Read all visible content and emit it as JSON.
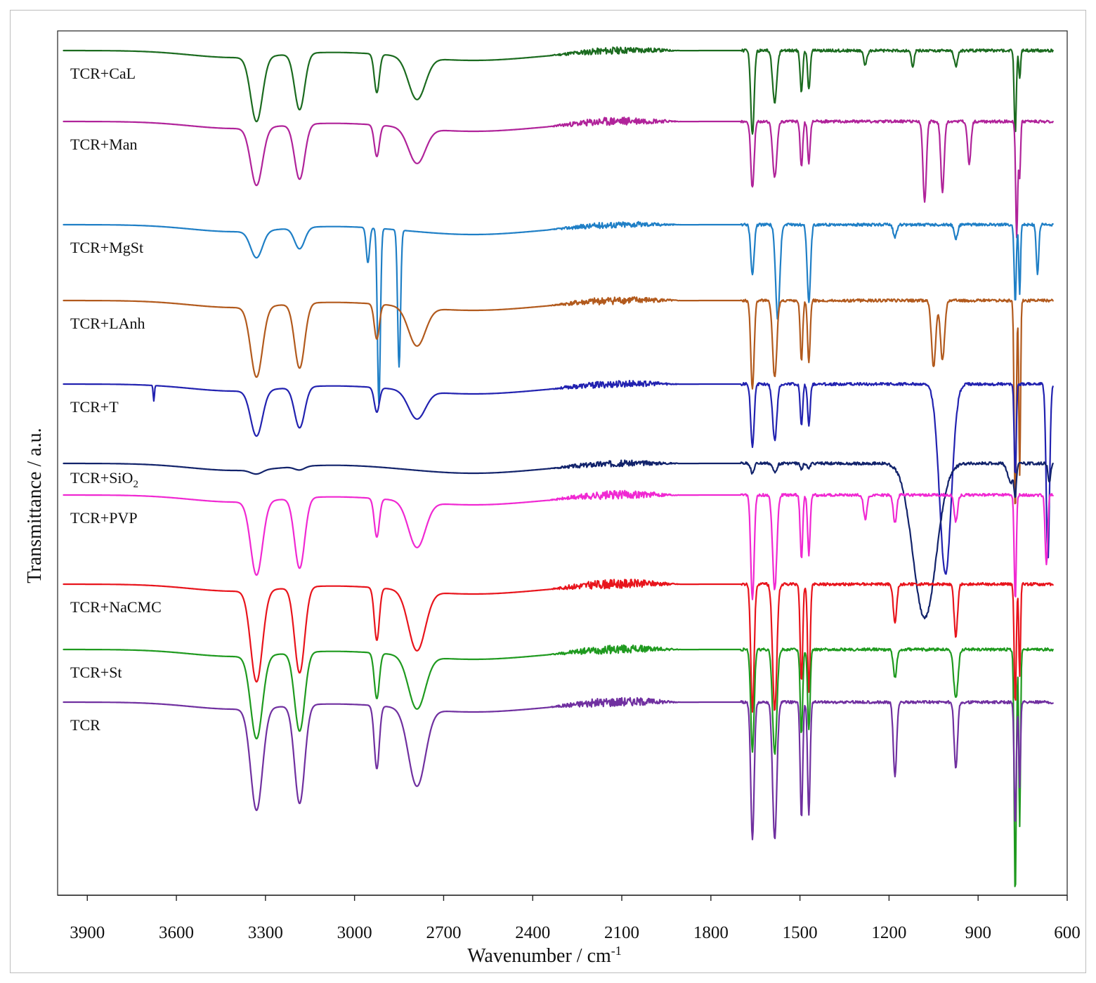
{
  "chart_data": {
    "type": "line",
    "title": "",
    "xlabel": "Wavenumber / cm",
    "xlabel_superscript": "-1",
    "ylabel": "Transmittance / a.u.",
    "xlim": [
      4000,
      600
    ],
    "x_reversed": true,
    "xticks": [
      3900,
      3600,
      3300,
      3000,
      2700,
      2400,
      2100,
      1800,
      1500,
      1200,
      900,
      600
    ],
    "grid": false,
    "legend": "inline-left",
    "series": [
      {
        "name": "TCR+CaL",
        "label": "TCR+CaL",
        "color": "#1b6b1f",
        "offset": 72,
        "bands": [
          [
            3330,
            28,
            92
          ],
          [
            3185,
            24,
            80
          ],
          [
            2925,
            12,
            55
          ],
          [
            2790,
            40,
            60
          ],
          [
            1660,
            8,
            120
          ],
          [
            1585,
            10,
            75
          ],
          [
            1495,
            6,
            60
          ],
          [
            1470,
            6,
            55
          ],
          [
            1280,
            8,
            20
          ],
          [
            1120,
            6,
            25
          ],
          [
            975,
            8,
            22
          ],
          [
            775,
            5,
            120
          ],
          [
            760,
            4,
            40
          ]
        ],
        "noise": [
          [
            2350,
            1900,
            10
          ]
        ],
        "seed": 11
      },
      {
        "name": "TCR+Man",
        "label": "TCR+Man",
        "color": "#b0239a",
        "offset": 173,
        "bands": [
          [
            3330,
            28,
            82
          ],
          [
            3185,
            24,
            78
          ],
          [
            2925,
            12,
            45
          ],
          [
            2790,
            40,
            50
          ],
          [
            1660,
            8,
            95
          ],
          [
            1585,
            10,
            80
          ],
          [
            1495,
            6,
            65
          ],
          [
            1470,
            6,
            60
          ],
          [
            1080,
            8,
            115
          ],
          [
            1020,
            8,
            100
          ],
          [
            930,
            8,
            60
          ],
          [
            770,
            5,
            165
          ],
          [
            760,
            4,
            80
          ]
        ],
        "noise": [
          [
            2350,
            1900,
            12
          ]
        ],
        "seed": 23
      },
      {
        "name": "TCR+MgSt",
        "label": "TCR+MgSt",
        "color": "#1f7fc6",
        "offset": 320,
        "bands": [
          [
            3330,
            28,
            38
          ],
          [
            3185,
            24,
            30
          ],
          [
            2955,
            8,
            50
          ],
          [
            2918,
            7,
            250
          ],
          [
            2850,
            7,
            195
          ],
          [
            1660,
            8,
            70
          ],
          [
            1575,
            10,
            135
          ],
          [
            1470,
            8,
            110
          ],
          [
            1180,
            8,
            18
          ],
          [
            975,
            8,
            20
          ],
          [
            775,
            5,
            110
          ],
          [
            760,
            4,
            100
          ],
          [
            700,
            6,
            70
          ]
        ],
        "noise": [
          [
            2350,
            1900,
            9
          ]
        ],
        "seed": 37
      },
      {
        "name": "TCR+LAnh",
        "label": "TCR+LAnh",
        "color": "#b25a1d",
        "offset": 428,
        "bands": [
          [
            3330,
            28,
            100
          ],
          [
            3185,
            24,
            92
          ],
          [
            2925,
            12,
            50
          ],
          [
            2790,
            40,
            55
          ],
          [
            1660,
            8,
            125
          ],
          [
            1585,
            10,
            110
          ],
          [
            1495,
            6,
            85
          ],
          [
            1470,
            6,
            90
          ],
          [
            1050,
            10,
            95
          ],
          [
            1020,
            10,
            85
          ],
          [
            775,
            5,
            300
          ],
          [
            760,
            4,
            250
          ]
        ],
        "noise": [
          [
            2350,
            1900,
            11
          ]
        ],
        "seed": 41
      },
      {
        "name": "TCR+T",
        "label": "TCR+T",
        "color": "#2222b0",
        "offset": 547,
        "bands": [
          [
            3676,
            3,
            22
          ],
          [
            3330,
            28,
            65
          ],
          [
            3185,
            24,
            58
          ],
          [
            2925,
            12,
            35
          ],
          [
            2790,
            40,
            40
          ],
          [
            1660,
            8,
            90
          ],
          [
            1585,
            10,
            80
          ],
          [
            1495,
            6,
            60
          ],
          [
            1470,
            6,
            60
          ],
          [
            1010,
            28,
            270
          ],
          [
            775,
            5,
            130
          ],
          [
            665,
            8,
            250
          ]
        ],
        "noise": [
          [
            2350,
            1900,
            10
          ]
        ],
        "seed": 53
      },
      {
        "name": "TCR+SiO2",
        "label": "TCR+SiO",
        "label_subscript": "2",
        "color": "#12236b",
        "offset": 660,
        "bands": [
          [
            3330,
            28,
            6
          ],
          [
            3185,
            24,
            5
          ],
          [
            1660,
            8,
            14
          ],
          [
            1585,
            10,
            12
          ],
          [
            1495,
            6,
            8
          ],
          [
            1470,
            6,
            8
          ],
          [
            1080,
            55,
            220
          ],
          [
            790,
            14,
            28
          ],
          [
            775,
            5,
            40
          ],
          [
            660,
            6,
            28
          ]
        ],
        "noise": [
          [
            2350,
            1900,
            9
          ]
        ],
        "seed": 67
      },
      {
        "name": "TCR+PVP",
        "label": "TCR+PVP",
        "color": "#f028d2",
        "offset": 705,
        "bands": [
          [
            3330,
            28,
            105
          ],
          [
            3185,
            24,
            100
          ],
          [
            2925,
            12,
            55
          ],
          [
            2790,
            40,
            65
          ],
          [
            1660,
            8,
            150
          ],
          [
            1585,
            10,
            135
          ],
          [
            1495,
            6,
            90
          ],
          [
            1470,
            6,
            85
          ],
          [
            1280,
            8,
            35
          ],
          [
            1180,
            8,
            40
          ],
          [
            975,
            8,
            38
          ],
          [
            775,
            5,
            150
          ],
          [
            670,
            6,
            100
          ]
        ],
        "noise": [
          [
            2350,
            1900,
            12
          ]
        ],
        "seed": 71
      },
      {
        "name": "TCR+NaCMC",
        "label": "TCR+NaCMC",
        "color": "#e8141c",
        "offset": 832,
        "bands": [
          [
            3330,
            28,
            130
          ],
          [
            3185,
            24,
            122
          ],
          [
            2925,
            12,
            75
          ],
          [
            2790,
            40,
            85
          ],
          [
            1660,
            8,
            180
          ],
          [
            1585,
            10,
            180
          ],
          [
            1495,
            6,
            140
          ],
          [
            1470,
            6,
            155
          ],
          [
            1180,
            8,
            55
          ],
          [
            975,
            8,
            75
          ],
          [
            775,
            5,
            170
          ],
          [
            760,
            4,
            130
          ]
        ],
        "noise": [
          [
            2350,
            1900,
            13
          ]
        ],
        "seed": 83
      },
      {
        "name": "TCR+St",
        "label": "TCR+St",
        "color": "#1f9a1f",
        "offset": 925,
        "bands": [
          [
            3330,
            28,
            118
          ],
          [
            3185,
            24,
            112
          ],
          [
            2925,
            12,
            65
          ],
          [
            2790,
            40,
            75
          ],
          [
            1660,
            8,
            145
          ],
          [
            1585,
            10,
            150
          ],
          [
            1495,
            6,
            120
          ],
          [
            1470,
            6,
            115
          ],
          [
            1180,
            8,
            40
          ],
          [
            975,
            10,
            70
          ],
          [
            775,
            5,
            350
          ],
          [
            760,
            4,
            250
          ]
        ],
        "noise": [
          [
            2350,
            1900,
            12
          ]
        ],
        "seed": 97
      },
      {
        "name": "TCR",
        "label": "TCR",
        "color": "#7030a0",
        "offset": 1000,
        "bands": [
          [
            3330,
            28,
            145
          ],
          [
            3185,
            24,
            140
          ],
          [
            2925,
            12,
            90
          ],
          [
            2790,
            40,
            110
          ],
          [
            1660,
            8,
            195
          ],
          [
            1585,
            10,
            195
          ],
          [
            1495,
            6,
            165
          ],
          [
            1470,
            6,
            160
          ],
          [
            1180,
            8,
            105
          ],
          [
            975,
            8,
            95
          ],
          [
            775,
            5,
            175
          ],
          [
            760,
            4,
            120
          ]
        ],
        "noise": [
          [
            2350,
            1900,
            13
          ]
        ],
        "seed": 101
      }
    ]
  }
}
